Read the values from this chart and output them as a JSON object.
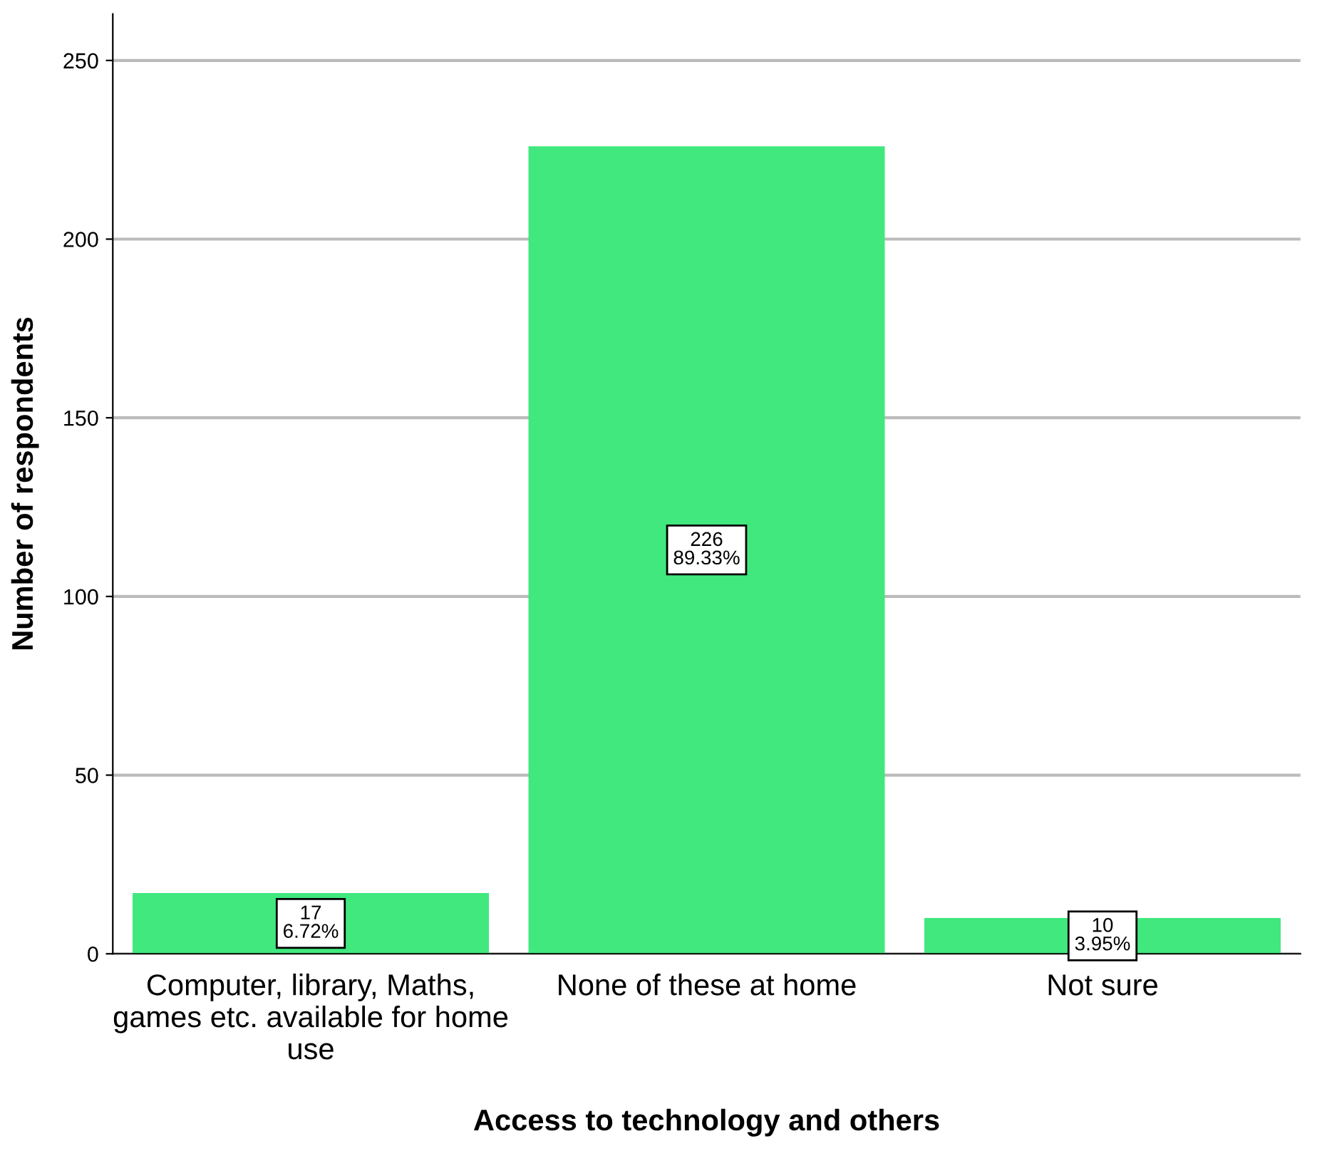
{
  "chart_data": {
    "type": "bar",
    "xlabel": "Access to technology and others",
    "ylabel": "Number of respondents",
    "categories": [
      "Computer, library, Maths,\ngames etc. available for home\nuse",
      "None of these at home",
      "Not sure"
    ],
    "values": [
      17,
      226,
      10
    ],
    "color": "#40e87e",
    "value_labels": [
      "17\n6.72%",
      "226\n89.33%",
      "10\n3.95%"
    ],
    "ylim": [
      0,
      263
    ],
    "yticks": [
      0,
      50,
      100,
      150,
      200,
      250
    ],
    "grid": "y"
  }
}
